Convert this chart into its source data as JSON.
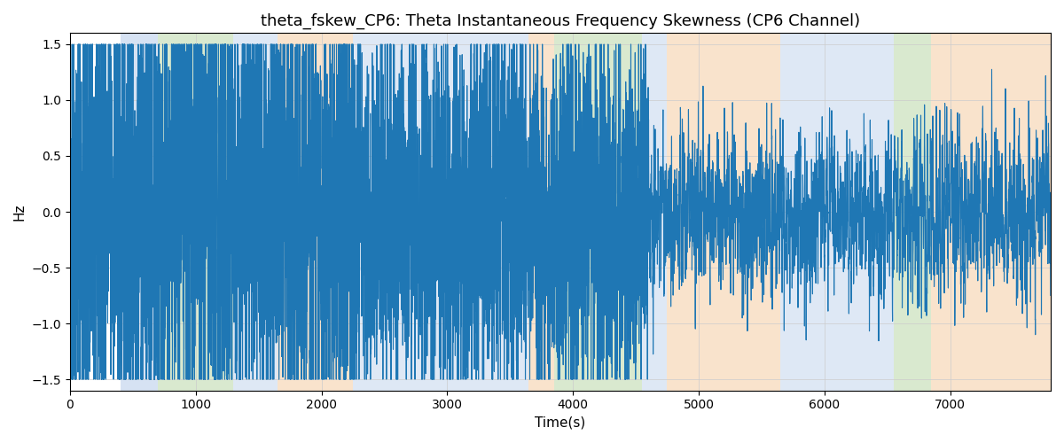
{
  "title": "theta_fskew_CP6: Theta Instantaneous Frequency Skewness (CP6 Channel)",
  "xlabel": "Time(s)",
  "ylabel": "Hz",
  "ylim": [
    -1.6,
    1.6
  ],
  "xlim": [
    0,
    7800
  ],
  "line_color": "#1f77b4",
  "line_width": 0.8,
  "bg_color": "#ffffff",
  "grid_color": "#cccccc",
  "colored_bands": [
    {
      "xmin": 400,
      "xmax": 700,
      "color": "#aec6e8",
      "alpha": 0.5
    },
    {
      "xmin": 700,
      "xmax": 1300,
      "color": "#b5d4a0",
      "alpha": 0.5
    },
    {
      "xmin": 1300,
      "xmax": 1650,
      "color": "#aec6e8",
      "alpha": 0.4
    },
    {
      "xmin": 1650,
      "xmax": 2250,
      "color": "#f5c99a",
      "alpha": 0.5
    },
    {
      "xmin": 2250,
      "xmax": 3650,
      "color": "#aec6e8",
      "alpha": 0.4
    },
    {
      "xmin": 3650,
      "xmax": 3850,
      "color": "#f5c99a",
      "alpha": 0.5
    },
    {
      "xmin": 3850,
      "xmax": 4550,
      "color": "#b5d4a0",
      "alpha": 0.5
    },
    {
      "xmin": 4550,
      "xmax": 4750,
      "color": "#aec6e8",
      "alpha": 0.4
    },
    {
      "xmin": 4750,
      "xmax": 5650,
      "color": "#f5c99a",
      "alpha": 0.5
    },
    {
      "xmin": 5650,
      "xmax": 6550,
      "color": "#aec6e8",
      "alpha": 0.4
    },
    {
      "xmin": 6550,
      "xmax": 6850,
      "color": "#b5d4a0",
      "alpha": 0.5
    },
    {
      "xmin": 6850,
      "xmax": 7800,
      "color": "#f5c99a",
      "alpha": 0.5
    }
  ],
  "seed": 42,
  "n_points": 7800,
  "title_fontsize": 13,
  "label_fontsize": 11
}
